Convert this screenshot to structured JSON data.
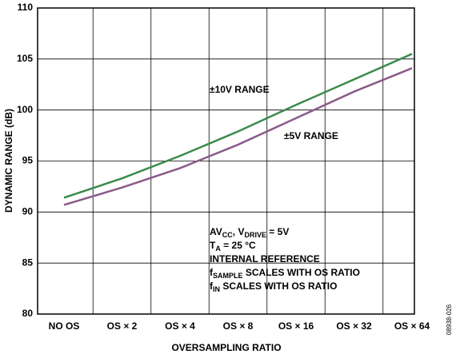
{
  "chart_data": {
    "type": "line",
    "xlabel": "OVERSAMPLING RATIO",
    "ylabel": "DYNAMIC RANGE (dB)",
    "categories": [
      "NO OS",
      "OS × 2",
      "OS × 4",
      "OS × 8",
      "OS × 16",
      "OS × 32",
      "OS × 64"
    ],
    "series": [
      {
        "name": "±10V RANGE",
        "color": "#3a8a4a",
        "values": [
          91.4,
          93.3,
          95.5,
          97.9,
          100.5,
          103.0,
          105.5
        ]
      },
      {
        "name": "±5V RANGE",
        "color": "#8a5a8a",
        "values": [
          90.7,
          92.4,
          94.3,
          96.6,
          99.2,
          101.8,
          104.1
        ]
      }
    ],
    "ylim": [
      80,
      110
    ],
    "yticks": [
      80,
      85,
      90,
      95,
      100,
      105,
      110
    ],
    "grid": true,
    "annotations": [
      [
        "AV",
        "CC",
        ", V",
        "DRIVE",
        " = 5V"
      ],
      [
        "T",
        "A",
        "  = 25 °C"
      ],
      [
        "INTERNAL REFERENCE"
      ],
      [
        "f",
        "SAMPLE",
        " SCALES WITH OS RATIO"
      ],
      [
        "f",
        "IN",
        " SCALES WITH OS RATIO"
      ]
    ],
    "figure_id": "08938-026"
  }
}
